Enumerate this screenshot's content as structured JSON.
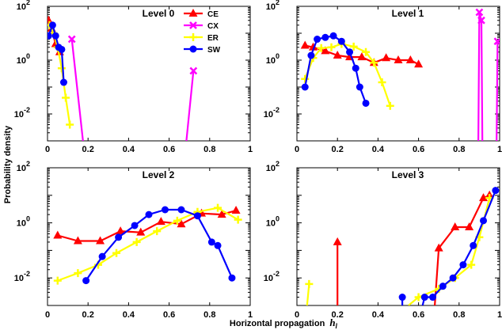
{
  "chart_data": {
    "type": "line",
    "ylabel": "Probability density",
    "xlabel": "Horizontal propagation",
    "xlabel_symbol": "h",
    "xlabel_subscript": "l",
    "yscale": "log",
    "ylim": [
      0.001,
      100
    ],
    "xlim": [
      0,
      1
    ],
    "x_ticks": [
      "0",
      "0.2",
      "0.4",
      "0.6",
      "0.8",
      "1"
    ],
    "y_ticks": [
      {
        "value": 100,
        "base": "10",
        "exp": "2"
      },
      {
        "value": 1,
        "base": "10",
        "exp": "0"
      },
      {
        "value": 0.01,
        "base": "10",
        "exp": "-2"
      }
    ],
    "legend": [
      {
        "name": "CE",
        "color": "#ff0000",
        "marker": "triangle"
      },
      {
        "name": "CX",
        "color": "#ff00ff",
        "marker": "x"
      },
      {
        "name": "ER",
        "color": "#ffff00",
        "marker": "plus"
      },
      {
        "name": "SW",
        "color": "#0000ff",
        "marker": "circle"
      }
    ],
    "panels": [
      {
        "title": "Level 0",
        "series": [
          {
            "name": "CE",
            "points": [
              [
                0.005,
                30
              ],
              [
                0.02,
                15
              ],
              [
                0.04,
                4
              ],
              [
                0.06,
                2
              ]
            ]
          },
          {
            "name": "CX",
            "points": [
              [
                0.12,
                6
              ],
              [
                0.175,
                0.001
              ],
              [
                null,
                null
              ],
              [
                0.685,
                0.001
              ],
              [
                0.72,
                0.4
              ]
            ]
          },
          {
            "name": "ER",
            "points": [
              [
                0.01,
                20
              ],
              [
                0.03,
                10
              ],
              [
                0.05,
                3
              ],
              [
                0.07,
                0.5
              ],
              [
                0.09,
                0.04
              ],
              [
                0.11,
                0.004
              ]
            ]
          },
          {
            "name": "SW",
            "points": [
              [
                0.005,
                8
              ],
              [
                0.025,
                20
              ],
              [
                0.04,
                8
              ],
              [
                0.055,
                3
              ],
              [
                0.07,
                2.5
              ],
              [
                0.08,
                0.15
              ]
            ]
          }
        ]
      },
      {
        "title": "Level 1",
        "series": [
          {
            "name": "CE",
            "points": [
              [
                0.04,
                3.5
              ],
              [
                0.08,
                3
              ],
              [
                0.14,
                2.2
              ],
              [
                0.2,
                1.5
              ],
              [
                0.26,
                1.3
              ],
              [
                0.32,
                1.3
              ],
              [
                0.38,
                0.8
              ],
              [
                0.44,
                1.2
              ],
              [
                0.5,
                1
              ],
              [
                0.56,
                1
              ],
              [
                0.6,
                0.7
              ]
            ]
          },
          {
            "name": "CX",
            "points": [
              [
                0.895,
                0.001
              ],
              [
                0.9,
                60
              ],
              [
                0.91,
                30
              ],
              [
                0.915,
                0.001
              ],
              [
                null,
                null
              ],
              [
                0.985,
                0.001
              ],
              [
                0.99,
                5
              ]
            ]
          },
          {
            "name": "ER",
            "points": [
              [
                0.04,
                0.2
              ],
              [
                0.08,
                1.2
              ],
              [
                0.12,
                2.8
              ],
              [
                0.17,
                3
              ],
              [
                0.22,
                4
              ],
              [
                0.28,
                3.2
              ],
              [
                0.34,
                2
              ],
              [
                0.38,
                0.8
              ],
              [
                0.42,
                0.15
              ],
              [
                0.46,
                0.02
              ]
            ]
          },
          {
            "name": "SW",
            "points": [
              [
                0.04,
                0.1
              ],
              [
                0.07,
                1.5
              ],
              [
                0.1,
                6
              ],
              [
                0.14,
                7
              ],
              [
                0.18,
                8
              ],
              [
                0.22,
                5
              ],
              [
                0.26,
                2
              ],
              [
                0.29,
                0.5
              ],
              [
                0.31,
                0.1
              ],
              [
                0.34,
                0.025
              ]
            ]
          }
        ]
      },
      {
        "title": "Level 2",
        "series": [
          {
            "name": "CE",
            "points": [
              [
                0.05,
                0.35
              ],
              [
                0.15,
                0.22
              ],
              [
                0.26,
                0.22
              ],
              [
                0.36,
                0.5
              ],
              [
                0.46,
                0.45
              ],
              [
                0.56,
                1.1
              ],
              [
                0.66,
                0.9
              ],
              [
                0.76,
                2.2
              ],
              [
                0.86,
                2
              ],
              [
                0.93,
                2.8
              ]
            ]
          },
          {
            "name": "ER",
            "points": [
              [
                0.05,
                0.008
              ],
              [
                0.15,
                0.015
              ],
              [
                0.25,
                0.03
              ],
              [
                0.34,
                0.08
              ],
              [
                0.44,
                0.2
              ],
              [
                0.54,
                0.5
              ],
              [
                0.64,
                1.2
              ],
              [
                0.74,
                2.5
              ],
              [
                0.84,
                3.5
              ],
              [
                0.94,
                1.3
              ]
            ]
          },
          {
            "name": "SW",
            "points": [
              [
                0.19,
                0.008
              ],
              [
                0.27,
                0.06
              ],
              [
                0.35,
                0.3
              ],
              [
                0.43,
                0.8
              ],
              [
                0.5,
                2
              ],
              [
                0.58,
                3
              ],
              [
                0.66,
                3
              ],
              [
                0.74,
                1.8
              ],
              [
                0.81,
                0.2
              ],
              [
                0.84,
                0.15
              ],
              [
                0.91,
                0.01
              ]
            ]
          }
        ]
      },
      {
        "title": "Level 3",
        "series": [
          {
            "name": "CE",
            "points": [
              [
                0.2,
                0.001
              ],
              [
                0.2,
                0.2
              ],
              [
                null,
                null
              ],
              [
                0.68,
                0.001
              ],
              [
                0.7,
                0.12
              ],
              [
                0.78,
                0.7
              ],
              [
                0.85,
                0.7
              ],
              [
                0.92,
                8
              ],
              [
                0.95,
                10
              ]
            ]
          },
          {
            "name": "ER",
            "points": [
              [
                0.05,
                0.001
              ],
              [
                0.06,
                0.006
              ],
              [
                null,
                null
              ],
              [
                0.55,
                0.001
              ],
              [
                0.6,
                0.002
              ],
              [
                0.7,
                0.004
              ],
              [
                0.78,
                0.01
              ],
              [
                0.86,
                0.03
              ],
              [
                0.9,
                0.3
              ],
              [
                0.95,
                8
              ]
            ]
          },
          {
            "name": "SW",
            "points": [
              [
                0.52,
                0.001
              ],
              [
                0.52,
                0.002
              ],
              [
                null,
                null
              ],
              [
                0.62,
                0.001
              ],
              [
                0.63,
                0.002
              ],
              [
                0.67,
                0.002
              ],
              [
                0.72,
                0.005
              ],
              [
                0.77,
                0.01
              ],
              [
                0.82,
                0.03
              ],
              [
                0.87,
                0.15
              ],
              [
                0.92,
                1.2
              ],
              [
                0.98,
                15
              ]
            ]
          }
        ]
      }
    ]
  }
}
